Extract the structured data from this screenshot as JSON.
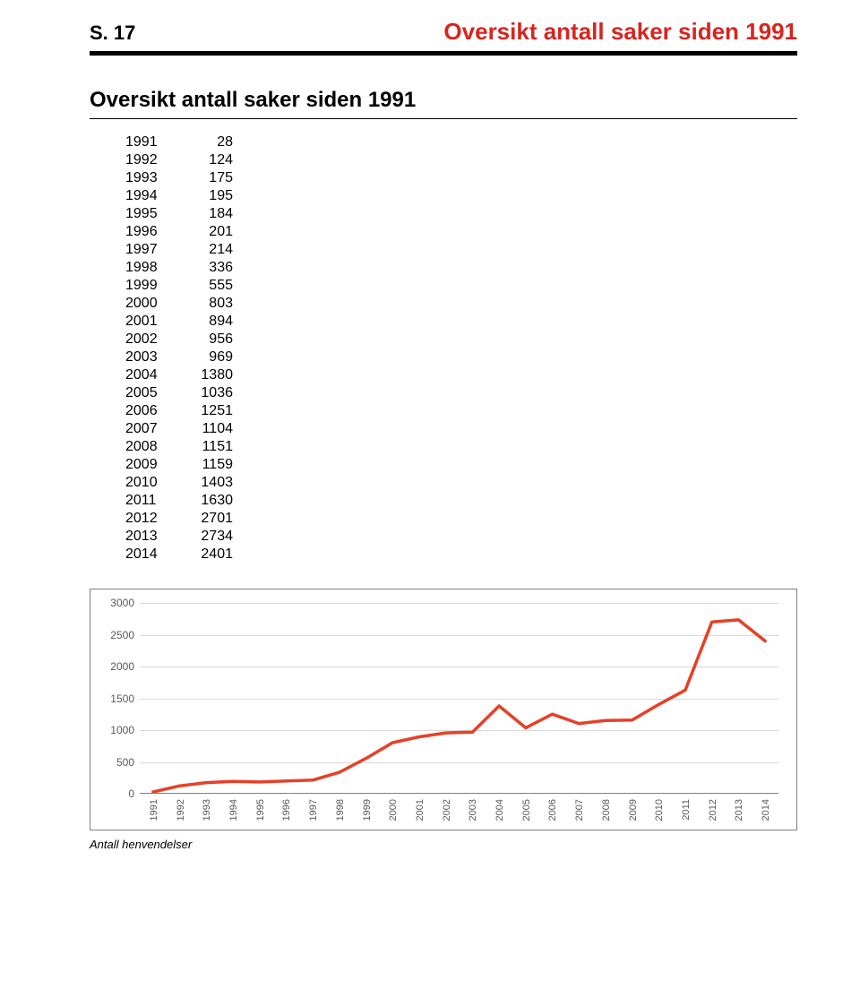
{
  "page": {
    "page_number_label": "S. 17",
    "title": "Oversikt antall saker siden 1991"
  },
  "section": {
    "subtitle": "Oversikt antall saker siden 1991"
  },
  "table": {
    "rows": [
      {
        "year": "1991",
        "value": "28"
      },
      {
        "year": "1992",
        "value": "124"
      },
      {
        "year": "1993",
        "value": "175"
      },
      {
        "year": "1994",
        "value": "195"
      },
      {
        "year": "1995",
        "value": "184"
      },
      {
        "year": "1996",
        "value": "201"
      },
      {
        "year": "1997",
        "value": "214"
      },
      {
        "year": "1998",
        "value": "336"
      },
      {
        "year": "1999",
        "value": "555"
      },
      {
        "year": "2000",
        "value": "803"
      },
      {
        "year": "2001",
        "value": "894"
      },
      {
        "year": "2002",
        "value": "956"
      },
      {
        "year": "2003",
        "value": "969"
      },
      {
        "year": "2004",
        "value": "1380"
      },
      {
        "year": "2005",
        "value": "1036"
      },
      {
        "year": "2006",
        "value": "1251"
      },
      {
        "year": "2007",
        "value": "1104"
      },
      {
        "year": "2008",
        "value": "1151"
      },
      {
        "year": "2009",
        "value": "1159"
      },
      {
        "year": "2010",
        "value": "1403"
      },
      {
        "year": "2011",
        "value": "1630"
      },
      {
        "year": "2012",
        "value": "2701"
      },
      {
        "year": "2013",
        "value": "2734"
      },
      {
        "year": "2014",
        "value": "2401"
      }
    ]
  },
  "chart": {
    "type": "line",
    "caption": "Antall henvendelser",
    "x_categories": [
      "1991",
      "1992",
      "1993",
      "1994",
      "1995",
      "1996",
      "1997",
      "1998",
      "1999",
      "2000",
      "2001",
      "2002",
      "2003",
      "2004",
      "2005",
      "2006",
      "2007",
      "2008",
      "2009",
      "2010",
      "2011",
      "2012",
      "2013",
      "2014"
    ],
    "values": [
      28,
      124,
      175,
      195,
      184,
      201,
      214,
      336,
      555,
      803,
      894,
      956,
      969,
      1380,
      1036,
      1251,
      1104,
      1151,
      1159,
      1403,
      1630,
      2701,
      2734,
      2401
    ],
    "ylim": [
      0,
      3000
    ],
    "ytick_step": 500,
    "ytick_labels": [
      "0",
      "500",
      "1000",
      "1500",
      "2000",
      "2500",
      "3000"
    ],
    "line_color": "#e64027",
    "line_width": 3.5,
    "grid_color": "#d9d9d9",
    "axis_label_color": "#595959",
    "axis_label_fontsize": 12,
    "border_color": "#7f7f7f",
    "background_color": "#ffffff"
  }
}
